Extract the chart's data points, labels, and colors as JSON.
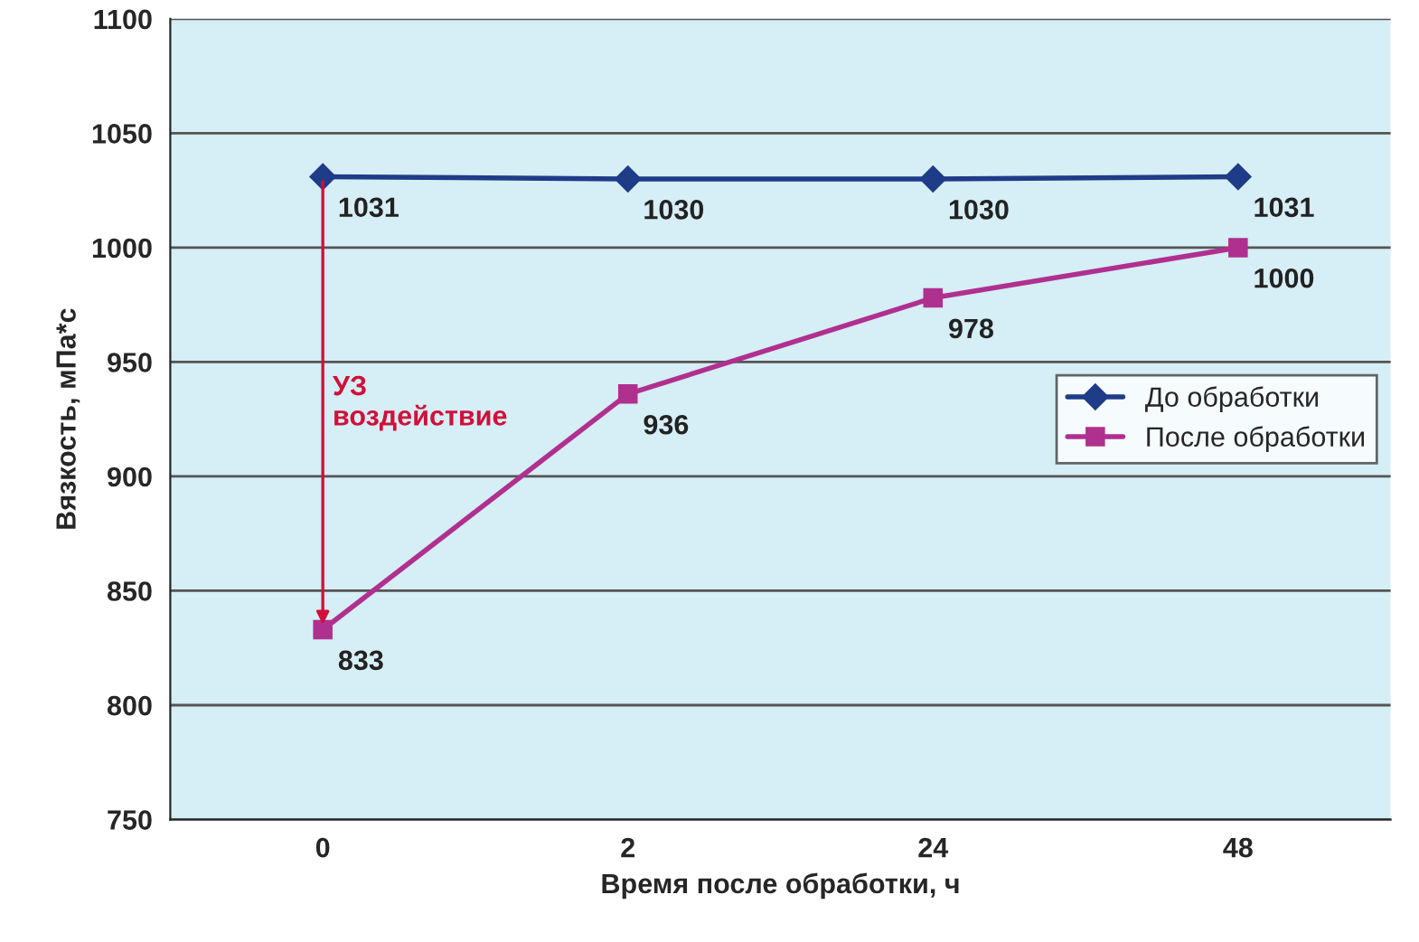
{
  "chart_data": {
    "type": "line",
    "xlabel": "Время после обработки, ч",
    "ylabel": "Вязкость, мПа*с",
    "categories": [
      "0",
      "2",
      "24",
      "48"
    ],
    "series": [
      {
        "name": "До обработки",
        "color": "#1f3c88",
        "marker": "diamond",
        "values": [
          1031,
          1030,
          1030,
          1031
        ]
      },
      {
        "name": "После обработки",
        "color": "#b0308f",
        "marker": "square",
        "values": [
          833,
          936,
          978,
          1000
        ]
      }
    ],
    "ylim": [
      750,
      1100
    ],
    "yticks": [
      750,
      800,
      850,
      900,
      950,
      1000,
      1050,
      1100
    ],
    "grid": "y",
    "legend": "right",
    "data_labels": true,
    "line_style": "solid",
    "annotations": [
      "УЗ\nвоздействие"
    ]
  }
}
